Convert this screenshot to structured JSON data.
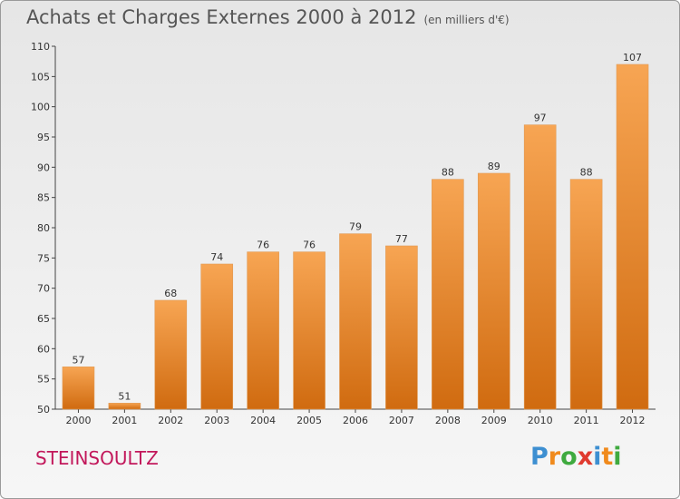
{
  "title": "Achats et Charges Externes 2000 à 2012",
  "subtitle": "(en milliers d'€)",
  "commune": "STEINSOULTZ",
  "logo": {
    "letters": [
      "P",
      "r",
      "o",
      "x",
      "i",
      "t",
      "i"
    ],
    "colors": [
      "#3d8fd1",
      "#f08a1c",
      "#3faa3f",
      "#e03a2f",
      "#3d8fd1",
      "#f08a1c",
      "#3faa3f"
    ]
  },
  "colors": {
    "bar_light": "#f7a553",
    "bar_dark": "#d06b10",
    "title": "#555555",
    "commune": "#c2185b"
  },
  "chart_data": {
    "type": "bar",
    "categories": [
      "2000",
      "2001",
      "2002",
      "2003",
      "2004",
      "2005",
      "2006",
      "2007",
      "2008",
      "2009",
      "2010",
      "2011",
      "2012"
    ],
    "values": [
      57,
      51,
      68,
      74,
      76,
      76,
      79,
      77,
      88,
      89,
      97,
      88,
      107
    ],
    "title": "Achats et Charges Externes 2000 à 2012",
    "ylim": [
      50,
      110
    ],
    "yticks": [
      50,
      55,
      60,
      65,
      70,
      75,
      80,
      85,
      90,
      95,
      100,
      105,
      110
    ],
    "grid": false,
    "legend": "none"
  }
}
